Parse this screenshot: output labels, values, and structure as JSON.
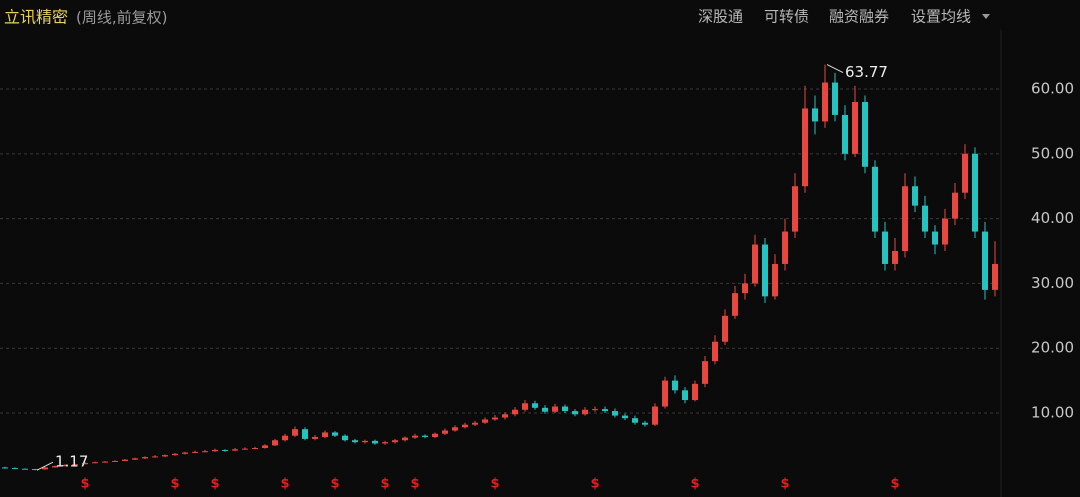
{
  "chart_data": {
    "type": "candlestick",
    "title": "立讯精密",
    "subtitle": "(周线,前复权)",
    "toolbar": [
      "深股通",
      "可转债",
      "融资融券",
      "设置均线"
    ],
    "up_color": "#e8473f",
    "down_color": "#24c3c0",
    "grid": true,
    "ylim": [
      0,
      69
    ],
    "yticks": [
      {
        "value": 10,
        "label": "10.00"
      },
      {
        "value": 20,
        "label": "20.00"
      },
      {
        "value": 30,
        "label": "30.00"
      },
      {
        "value": 40,
        "label": "40.00"
      },
      {
        "value": 50,
        "label": "50.00"
      },
      {
        "value": 60,
        "label": "60.00"
      }
    ],
    "open": [
      1.6,
      1.5,
      1.4,
      1.35,
      1.3,
      1.6,
      1.8,
      2.0,
      2.1,
      2.3,
      2.4,
      2.5,
      2.6,
      2.8,
      3.0,
      3.2,
      3.3,
      3.5,
      3.7,
      3.9,
      4.0,
      4.1,
      4.3,
      4.2,
      4.4,
      4.5,
      4.6,
      5.0,
      5.8,
      6.5,
      7.5,
      6.0,
      6.3,
      7.0,
      6.5,
      5.8,
      5.5,
      5.7,
      5.3,
      5.5,
      5.8,
      6.2,
      6.5,
      6.3,
      6.8,
      7.3,
      7.8,
      8.2,
      8.5,
      9.0,
      9.3,
      9.8,
      10.5,
      11.5,
      10.8,
      10.2,
      11.0,
      10.3,
      9.8,
      10.5,
      10.6,
      10.3,
      9.6,
      9.2,
      8.5,
      8.2,
      11.0,
      15.0,
      13.5,
      12.0,
      14.5,
      18.0,
      21.0,
      25.0,
      28.5,
      30.0,
      36.0,
      28.0,
      33.0,
      38.0,
      45.0,
      57.0,
      55.0,
      61.0,
      56.0,
      50.0,
      58.0,
      48.0,
      38.0,
      33.0,
      35.0,
      45.0,
      42.0,
      38.0,
      36.0,
      40.0,
      44.0,
      50.0,
      38.0,
      29.0
    ],
    "close": [
      1.5,
      1.4,
      1.35,
      1.3,
      1.6,
      1.8,
      2.0,
      2.1,
      2.3,
      2.4,
      2.5,
      2.6,
      2.8,
      3.0,
      3.2,
      3.3,
      3.5,
      3.7,
      3.9,
      4.0,
      4.1,
      4.3,
      4.2,
      4.4,
      4.5,
      4.6,
      5.0,
      5.8,
      6.5,
      7.5,
      6.0,
      6.3,
      7.0,
      6.5,
      5.8,
      5.5,
      5.7,
      5.3,
      5.5,
      5.8,
      6.2,
      6.5,
      6.3,
      6.8,
      7.3,
      7.8,
      8.2,
      8.5,
      9.0,
      9.3,
      9.8,
      10.5,
      11.5,
      10.8,
      10.2,
      11.0,
      10.3,
      9.8,
      10.5,
      10.6,
      10.3,
      9.6,
      9.2,
      8.5,
      8.2,
      11.0,
      15.0,
      13.5,
      12.0,
      14.5,
      18.0,
      21.0,
      25.0,
      28.5,
      30.0,
      36.0,
      28.0,
      33.0,
      38.0,
      45.0,
      57.0,
      55.0,
      61.0,
      56.0,
      50.0,
      58.0,
      48.0,
      38.0,
      33.0,
      35.0,
      45.0,
      42.0,
      38.0,
      36.0,
      40.0,
      44.0,
      50.0,
      38.0,
      29.0,
      33.0
    ],
    "high": [
      1.7,
      1.6,
      1.45,
      1.4,
      1.7,
      1.9,
      2.1,
      2.2,
      2.4,
      2.5,
      2.6,
      2.7,
      2.9,
      3.1,
      3.3,
      3.5,
      3.6,
      3.8,
      4.0,
      4.2,
      4.3,
      4.5,
      4.4,
      4.6,
      4.7,
      4.8,
      5.2,
      6.0,
      6.8,
      7.9,
      7.8,
      6.6,
      7.3,
      7.2,
      6.7,
      6.0,
      5.9,
      5.9,
      5.7,
      6.0,
      6.4,
      6.8,
      6.7,
      7.0,
      7.6,
      8.1,
      8.5,
      8.8,
      9.3,
      9.7,
      10.1,
      10.9,
      12.0,
      11.9,
      11.2,
      11.4,
      11.3,
      10.6,
      10.9,
      11.0,
      11.0,
      10.7,
      9.9,
      9.6,
      8.8,
      11.5,
      15.6,
      15.8,
      14.0,
      15.0,
      18.8,
      22.0,
      26.0,
      29.6,
      31.5,
      37.5,
      37.0,
      34.5,
      40.0,
      47.0,
      60.5,
      59.0,
      63.77,
      62.5,
      57.5,
      60.5,
      59.0,
      49.0,
      39.5,
      37.0,
      47.0,
      46.5,
      43.5,
      39.0,
      41.5,
      45.5,
      51.5,
      51.0,
      39.5,
      36.5
    ],
    "low": [
      1.4,
      1.35,
      1.3,
      1.17,
      1.25,
      1.55,
      1.75,
      1.95,
      2.05,
      2.25,
      2.35,
      2.45,
      2.55,
      2.75,
      2.9,
      3.1,
      3.2,
      3.4,
      3.6,
      3.8,
      3.9,
      4.0,
      4.0,
      4.1,
      4.3,
      4.4,
      4.5,
      4.9,
      5.6,
      6.3,
      5.8,
      5.8,
      6.1,
      6.3,
      5.6,
      5.3,
      5.3,
      5.1,
      5.1,
      5.3,
      5.6,
      6.0,
      6.1,
      6.1,
      6.6,
      7.1,
      7.6,
      8.0,
      8.3,
      8.8,
      9.0,
      9.5,
      10.2,
      10.5,
      9.9,
      10.0,
      10.0,
      9.5,
      9.6,
      10.2,
      10.0,
      9.3,
      8.9,
      8.2,
      7.9,
      8.0,
      10.7,
      13.0,
      11.5,
      11.8,
      14.0,
      17.5,
      20.5,
      24.5,
      27.5,
      29.5,
      27.0,
      27.5,
      32.0,
      37.0,
      44.0,
      53.0,
      54.0,
      55.0,
      49.0,
      49.5,
      47.0,
      37.0,
      32.0,
      32.0,
      34.0,
      41.0,
      37.0,
      34.5,
      35.0,
      39.0,
      43.0,
      37.0,
      27.5,
      28.0
    ],
    "annotations": [
      {
        "label": "63.77",
        "index": 82,
        "value": 63.77
      },
      {
        "label": "1.17",
        "index": 3,
        "value": 1.17
      }
    ],
    "dividend_label": "$",
    "dividend_at": [
      8,
      17,
      21,
      28,
      33,
      38,
      41,
      49,
      59,
      69,
      78,
      89
    ]
  }
}
